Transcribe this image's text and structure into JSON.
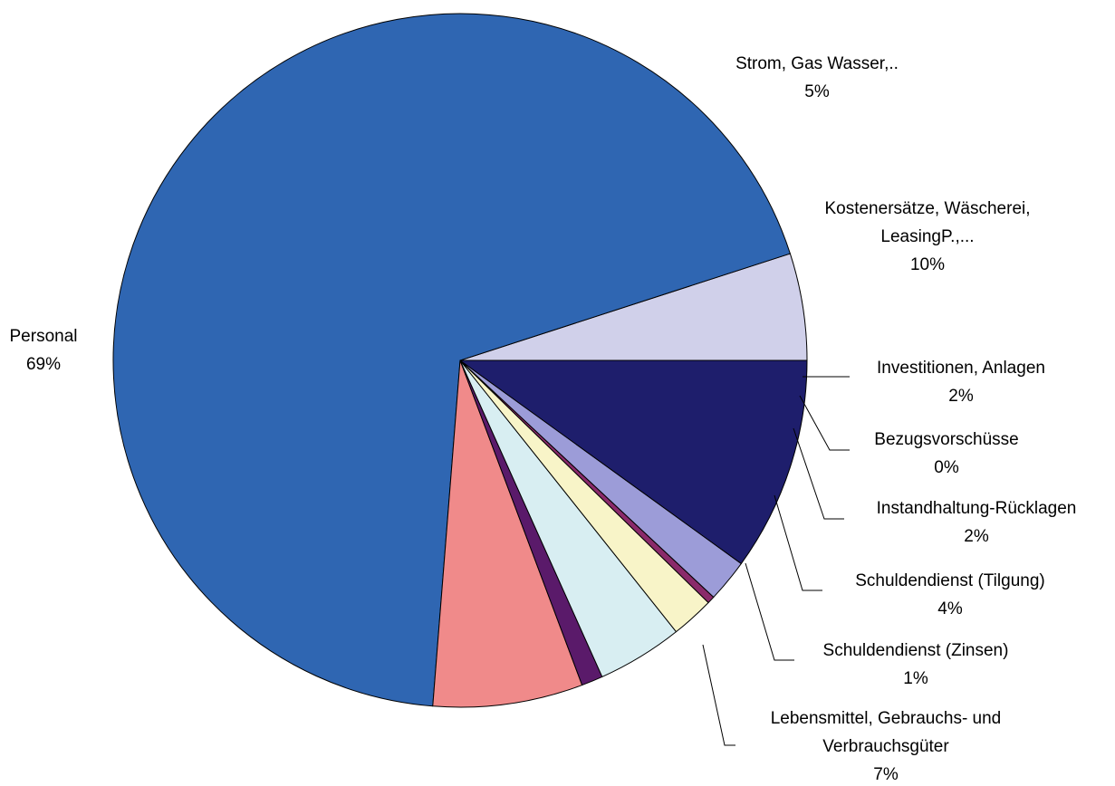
{
  "chart_data": {
    "type": "pie",
    "title": "",
    "start_angle_deg": 0,
    "direction": "counterclockwise",
    "slices": [
      {
        "label": [
          "Strom, Gas Wasser,.."
        ],
        "value": 5,
        "pct_label": "5%",
        "color": "#D0D0EA"
      },
      {
        "label": [
          "Personal"
        ],
        "value": 69,
        "pct_label": "69%",
        "color": "#2F66B2"
      },
      {
        "label": [
          "Lebensmittel, Gebrauchs- und",
          "Verbrauchsgüter"
        ],
        "value": 7,
        "pct_label": "7%",
        "color": "#F08A8A"
      },
      {
        "label": [
          "Schuldendienst (Zinsen)"
        ],
        "value": 1,
        "pct_label": "1%",
        "color": "#5A1A6A"
      },
      {
        "label": [
          "Schuldendienst (Tilgung)"
        ],
        "value": 4,
        "pct_label": "4%",
        "color": "#D8EEF2"
      },
      {
        "label": [
          "Instandhaltung-Rücklagen"
        ],
        "value": 2,
        "pct_label": "2%",
        "color": "#F8F4C8"
      },
      {
        "label": [
          "Bezugsvorschüsse"
        ],
        "value": 0,
        "pct_label": "0%",
        "color": "#8A2A6A"
      },
      {
        "label": [
          "Investitionen, Anlagen"
        ],
        "value": 2,
        "pct_label": "2%",
        "color": "#9C9CD8"
      },
      {
        "label": [
          "Kostenersätze, Wäscherei,",
          "LeasingP.,..."
        ],
        "value": 10,
        "pct_label": "10%",
        "color": "#1E1E6C"
      }
    ]
  }
}
